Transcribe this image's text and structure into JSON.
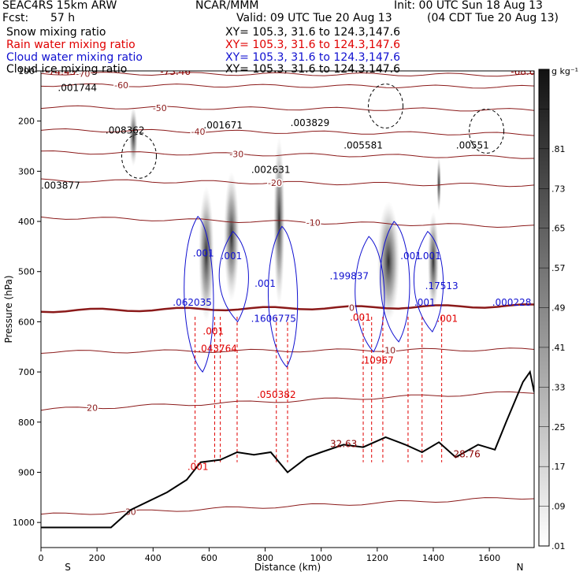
{
  "header": {
    "title_left": "SEAC4RS 15km ARW",
    "title_center": "NCAR/MMM",
    "init": "Init: 00 UTC Sun 18 Aug 13",
    "fcst_label": "Fcst:",
    "fcst_value": "57 h",
    "valid": "Valid: 09 UTC Tue 20 Aug 13",
    "valid_local": "(04 CDT Tue 20 Aug 13)",
    "fields": [
      {
        "name": "Snow mixing ratio",
        "color": "#000000",
        "xy": "XY= 105.3, 31.6 to 124.3,147.6"
      },
      {
        "name": "Rain water mixing ratio",
        "color": "#e00000",
        "xy": "XY= 105.3, 31.6 to 124.3,147.6"
      },
      {
        "name": "Cloud water mixing ratio",
        "color": "#1010d0",
        "xy": "XY= 105.3, 31.6 to 124.3,147.6"
      },
      {
        "name": "Cloud ice mixing ratio",
        "color": "#000000",
        "xy": "XY= 105.3, 31.6 to 124.3,147.6"
      }
    ]
  },
  "chart_data": {
    "type": "cross-section",
    "xlabel": "Distance (km)",
    "ylabel": "Pressure (hPa)",
    "x_ticks": [
      0,
      200,
      400,
      600,
      800,
      1000,
      1200,
      1400,
      1600
    ],
    "y_ticks": [
      100,
      200,
      300,
      400,
      500,
      600,
      700,
      800,
      900,
      1000
    ],
    "xlim": [
      0,
      1760
    ],
    "ylim": [
      100,
      1050
    ],
    "endpoints": {
      "left": "S",
      "right": "N"
    },
    "colorbar": {
      "unit": "g kg⁻¹",
      "labels": [
        "",
        ".81",
        ".73",
        ".65",
        ".57",
        ".49",
        ".41",
        ".33",
        ".25",
        ".17",
        ".09",
        ".01"
      ]
    },
    "temperature_contours": [
      {
        "label": "-70",
        "p_left": 105,
        "p_right": 108
      },
      {
        "label": "-60",
        "p_left": 128,
        "p_right": 132
      },
      {
        "label": "-50",
        "p_left": 172,
        "p_right": 178
      },
      {
        "label": "-40",
        "p_left": 218,
        "p_right": 226
      },
      {
        "label": "-30",
        "p_left": 262,
        "p_right": 272
      },
      {
        "label": "-20",
        "p_left": 318,
        "p_right": 328
      },
      {
        "label": "-10",
        "p_left": 392,
        "p_right": 410
      },
      {
        "label": "0",
        "p_left": 578,
        "p_right": 568
      },
      {
        "label": "10",
        "p_left": 660,
        "p_right": 655
      },
      {
        "label": "20",
        "p_left": 775,
        "p_right": 740
      },
      {
        "label": "30",
        "p_left": 985,
        "p_right": 950
      }
    ],
    "annotations": [
      {
        "text": "-74.43",
        "x": 70,
        "p": 108,
        "color": "#8b0000"
      },
      {
        "text": "-73.46",
        "x": 480,
        "p": 108,
        "color": "#8b0000"
      },
      {
        "text": "-68.6",
        "x": 1720,
        "p": 108,
        "color": "#8b0000"
      },
      {
        "text": ".001744",
        "x": 130,
        "p": 140,
        "color": "#000000"
      },
      {
        "text": ".008362",
        "x": 300,
        "p": 225,
        "color": "#000000"
      },
      {
        "text": ".001671",
        "x": 650,
        "p": 215,
        "color": "#000000"
      },
      {
        "text": ".003829",
        "x": 960,
        "p": 210,
        "color": "#000000"
      },
      {
        "text": ".005581",
        "x": 1150,
        "p": 255,
        "color": "#000000"
      },
      {
        "text": ".00551",
        "x": 1540,
        "p": 255,
        "color": "#000000"
      },
      {
        "text": ".002631",
        "x": 820,
        "p": 303,
        "color": "#000000"
      },
      {
        "text": ".003877",
        "x": 70,
        "p": 335,
        "color": "#000000"
      },
      {
        "text": ".001",
        "x": 580,
        "p": 470,
        "color": "#1010d0"
      },
      {
        "text": ".001",
        "x": 680,
        "p": 475,
        "color": "#1010d0"
      },
      {
        "text": ".062035",
        "x": 540,
        "p": 568,
        "color": "#1010d0"
      },
      {
        "text": ".001",
        "x": 800,
        "p": 530,
        "color": "#1010d0"
      },
      {
        "text": ".199837",
        "x": 1100,
        "p": 515,
        "color": "#1010d0"
      },
      {
        "text": ".001",
        "x": 1320,
        "p": 475,
        "color": "#1010d0"
      },
      {
        "text": ".001",
        "x": 1390,
        "p": 475,
        "color": "#1010d0"
      },
      {
        "text": ".17513",
        "x": 1430,
        "p": 535,
        "color": "#1010d0"
      },
      {
        "text": ".000228",
        "x": 1680,
        "p": 568,
        "color": "#1010d0"
      },
      {
        "text": ".001",
        "x": 1370,
        "p": 568,
        "color": "#1010d0"
      },
      {
        "text": ".1606775",
        "x": 830,
        "p": 600,
        "color": "#1010d0"
      },
      {
        "text": ".001",
        "x": 615,
        "p": 625,
        "color": "#e00000"
      },
      {
        "text": ".043764",
        "x": 630,
        "p": 660,
        "color": "#e00000"
      },
      {
        "text": ".050382",
        "x": 840,
        "p": 752,
        "color": "#e00000"
      },
      {
        "text": ".001",
        "x": 1140,
        "p": 598,
        "color": "#e00000"
      },
      {
        "text": ".10967",
        "x": 1200,
        "p": 683,
        "color": "#e00000"
      },
      {
        "text": ".001",
        "x": 1450,
        "p": 600,
        "color": "#e00000"
      },
      {
        "text": ".001",
        "x": 560,
        "p": 895,
        "color": "#e00000"
      },
      {
        "text": "32.63",
        "x": 1080,
        "p": 850,
        "color": "#8b0000"
      },
      {
        "text": "28.76",
        "x": 1520,
        "p": 870,
        "color": "#8b0000"
      }
    ]
  }
}
